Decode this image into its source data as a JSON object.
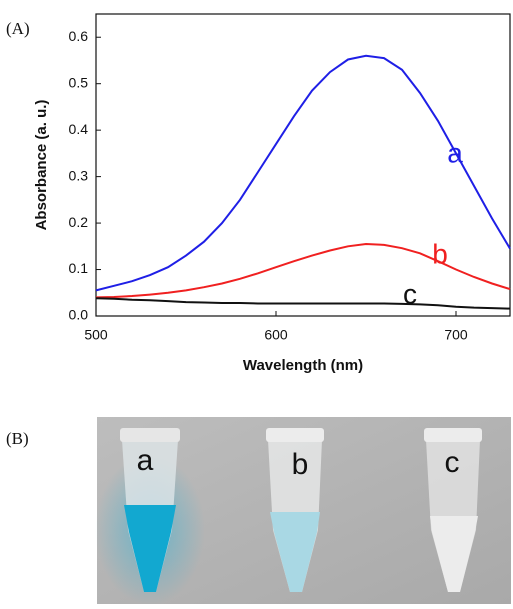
{
  "panel_labels": [
    "(A)",
    "(B)"
  ],
  "chart_data": {
    "type": "line",
    "x_label": "Wavelength (nm)",
    "y_label": "Absorbance (a. u.)",
    "x": [
      500,
      510,
      520,
      530,
      540,
      550,
      560,
      570,
      580,
      590,
      600,
      610,
      620,
      630,
      640,
      650,
      660,
      670,
      680,
      690,
      700,
      710,
      720,
      730
    ],
    "series": [
      {
        "name": "a",
        "color": "#1f1fe6",
        "values": [
          0.055,
          0.065,
          0.075,
          0.088,
          0.105,
          0.13,
          0.16,
          0.2,
          0.25,
          0.31,
          0.37,
          0.43,
          0.485,
          0.525,
          0.552,
          0.56,
          0.555,
          0.53,
          0.48,
          0.42,
          0.35,
          0.28,
          0.21,
          0.145
        ]
      },
      {
        "name": "b",
        "color": "#f02020",
        "values": [
          0.04,
          0.041,
          0.043,
          0.046,
          0.05,
          0.055,
          0.062,
          0.07,
          0.08,
          0.092,
          0.105,
          0.118,
          0.13,
          0.141,
          0.15,
          0.155,
          0.153,
          0.146,
          0.135,
          0.118,
          0.1,
          0.084,
          0.07,
          0.058
        ]
      },
      {
        "name": "c",
        "color": "#111111",
        "values": [
          0.038,
          0.037,
          0.035,
          0.034,
          0.032,
          0.03,
          0.029,
          0.028,
          0.028,
          0.027,
          0.027,
          0.027,
          0.027,
          0.027,
          0.027,
          0.027,
          0.027,
          0.026,
          0.025,
          0.023,
          0.02,
          0.018,
          0.017,
          0.016
        ]
      }
    ],
    "xlim": [
      500,
      730
    ],
    "xticks": [
      500,
      600,
      700
    ],
    "ylim": [
      0,
      0.65
    ],
    "yticks": [
      {
        "value": 0,
        "label": "0.0"
      },
      0.1,
      0.2,
      0.3,
      0.4,
      0.5,
      0.6
    ]
  },
  "photo": {
    "tube_labels": [
      "a",
      "b",
      "c"
    ]
  }
}
